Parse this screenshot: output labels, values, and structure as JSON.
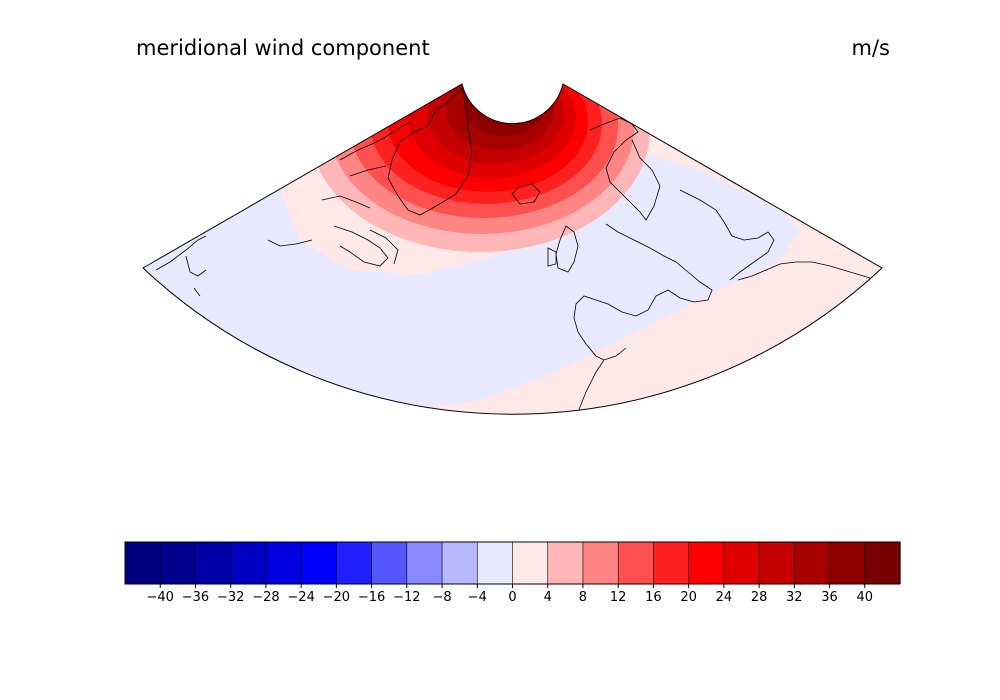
{
  "title_left": "meridional wind component",
  "title_right": "m/s",
  "map": {
    "projection": "conic",
    "domain": "North Atlantic / Europe",
    "boundary_color": "#000000",
    "coastline_color": "#000000",
    "field": "meridional wind",
    "regions": [
      {
        "label": "0 to 4",
        "color": "#ffe8e8"
      },
      {
        "label": "-4 to 0",
        "color": "#e8e8ff"
      },
      {
        "label": "4 to 8",
        "color": "#ffb6b6"
      },
      {
        "label": "8 to 12",
        "color": "#ff8585"
      },
      {
        "label": "12 to 16",
        "color": "#ff5050"
      },
      {
        "label": "16 to 20",
        "color": "#ff2020"
      },
      {
        "label": "20 to 24",
        "color": "#ff0000"
      },
      {
        "label": "24 to 28",
        "color": "#e00000"
      },
      {
        "label": "28 to 32",
        "color": "#c40000"
      },
      {
        "label": "32 to 36",
        "color": "#a80000"
      },
      {
        "label": "36 to 40",
        "color": "#8e0000"
      },
      {
        "label": "40 to 44",
        "color": "#780000"
      }
    ]
  },
  "colorbar": {
    "ticks": [
      "−40",
      "−36",
      "−32",
      "−28",
      "−24",
      "−20",
      "−16",
      "−12",
      "−8",
      "−4",
      "0",
      "4",
      "8",
      "12",
      "16",
      "20",
      "24",
      "28",
      "32",
      "36",
      "40"
    ],
    "colors": [
      "#000080",
      "#00008e",
      "#0000a8",
      "#0000c4",
      "#0000e0",
      "#0000ff",
      "#2020ff",
      "#5555ff",
      "#8888ff",
      "#b8b8ff",
      "#e8e8ff",
      "#ffe8e8",
      "#ffb6b6",
      "#ff8585",
      "#ff5050",
      "#ff2020",
      "#ff0000",
      "#e00000",
      "#c40000",
      "#a80000",
      "#8e0000",
      "#780000"
    ]
  }
}
